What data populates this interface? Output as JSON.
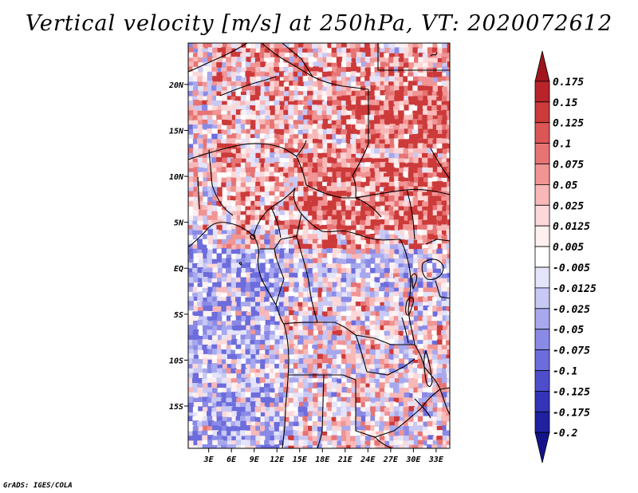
{
  "title": "Vertical velocity [m/s] at 250hPa, VT: 2020072612",
  "credit": "GrADS: IGES/COLA",
  "map": {
    "variable": "Vertical velocity",
    "units": "m/s",
    "level": "250hPa",
    "valid_time": "2020072612",
    "x_ticks": [
      "3E",
      "6E",
      "9E",
      "12E",
      "15E",
      "18E",
      "21E",
      "24E",
      "27E",
      "30E",
      "33E"
    ],
    "y_ticks": [
      "20N",
      "15N",
      "10N",
      "5N",
      "EQ",
      "5S",
      "10S",
      "15S"
    ],
    "x_tick_values": [
      3,
      6,
      9,
      12,
      15,
      18,
      21,
      24,
      27,
      30,
      33
    ],
    "y_tick_values": [
      20,
      15,
      10,
      5,
      0,
      -5,
      -10,
      -15
    ],
    "lon_range": [
      0.3,
      34.8
    ],
    "lat_range": [
      -19.6,
      24.5
    ]
  },
  "colorbar": {
    "levels": [
      "0.175",
      "0.15",
      "0.125",
      "0.1",
      "0.075",
      "0.05",
      "0.025",
      "0.0125",
      "0.005",
      "-0.005",
      "-0.0125",
      "-0.025",
      "-0.05",
      "-0.075",
      "-0.1",
      "-0.125",
      "-0.175",
      "-0.2"
    ],
    "colors": [
      "#a0141e",
      "#b8242a",
      "#cc3a3a",
      "#dc5656",
      "#e67474",
      "#f09494",
      "#f8b8b8",
      "#fcd8d8",
      "#fff0f0",
      "#ffffff",
      "#e4e4fa",
      "#c8c8f4",
      "#a8a8ee",
      "#8a8ae6",
      "#6c6cdc",
      "#4e4ecc",
      "#3434b8",
      "#2020a0",
      "#14148a"
    ]
  }
}
